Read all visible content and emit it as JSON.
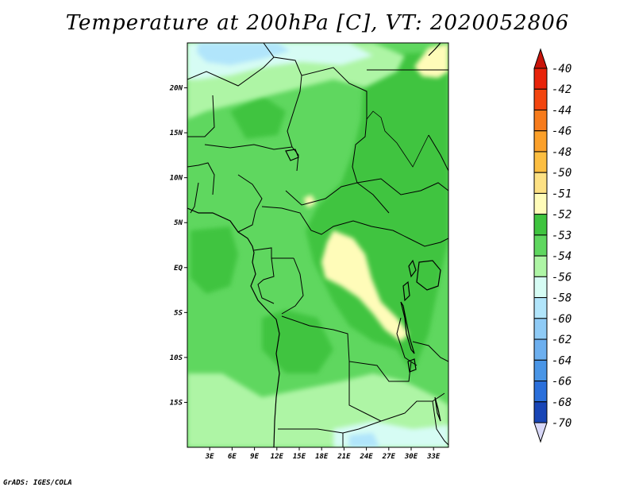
{
  "title": "Temperature at 200hPa [C], VT: 2020052806",
  "credit": "GrADS: IGES/COLA",
  "map": {
    "lon_range": [
      0,
      35
    ],
    "lat_range": [
      -20,
      25
    ],
    "lat_ticks": [
      {
        "value": 20,
        "label": "20N"
      },
      {
        "value": 15,
        "label": "15N"
      },
      {
        "value": 10,
        "label": "10N"
      },
      {
        "value": 5,
        "label": "5N"
      },
      {
        "value": 0,
        "label": "EQ"
      },
      {
        "value": -5,
        "label": "5S"
      },
      {
        "value": -10,
        "label": "10S"
      },
      {
        "value": -15,
        "label": "15S"
      }
    ],
    "lon_ticks": [
      {
        "value": 3,
        "label": "3E"
      },
      {
        "value": 6,
        "label": "6E"
      },
      {
        "value": 9,
        "label": "9E"
      },
      {
        "value": 12,
        "label": "12E"
      },
      {
        "value": 15,
        "label": "15E"
      },
      {
        "value": 18,
        "label": "18E"
      },
      {
        "value": 21,
        "label": "21E"
      },
      {
        "value": 24,
        "label": "24E"
      },
      {
        "value": 27,
        "label": "27E"
      },
      {
        "value": 30,
        "label": "30E"
      },
      {
        "value": 33,
        "label": "33E"
      }
    ],
    "base_color": "#5fd75f"
  },
  "colorbar": {
    "levels": [
      {
        "label": "-40",
        "color": "#e8230a"
      },
      {
        "label": "-42",
        "color": "#f3450f"
      },
      {
        "label": "-44",
        "color": "#f77b1b"
      },
      {
        "label": "-46",
        "color": "#fba02a"
      },
      {
        "label": "-48",
        "color": "#fcbe41"
      },
      {
        "label": "-50",
        "color": "#fde184"
      },
      {
        "label": "-51",
        "color": "#fffcb9"
      },
      {
        "label": "-52",
        "color": "#3fc43f"
      },
      {
        "label": "-53",
        "color": "#5fd75f"
      },
      {
        "label": "-54",
        "color": "#aef5a5"
      },
      {
        "label": "-56",
        "color": "#d6fcf4"
      },
      {
        "label": "-58",
        "color": "#b1e5fb"
      },
      {
        "label": "-60",
        "color": "#8fcbf6"
      },
      {
        "label": "-62",
        "color": "#6cafef"
      },
      {
        "label": "-64",
        "color": "#4995e6"
      },
      {
        "label": "-66",
        "color": "#2a6fdb"
      },
      {
        "label": "-68",
        "color": "#1845b6"
      },
      {
        "label": "-70",
        "color": "#0e2a8c"
      }
    ],
    "top_color": "#c8140a",
    "bottom_colors": [
      "#08165e",
      "#d8d8f8"
    ]
  }
}
